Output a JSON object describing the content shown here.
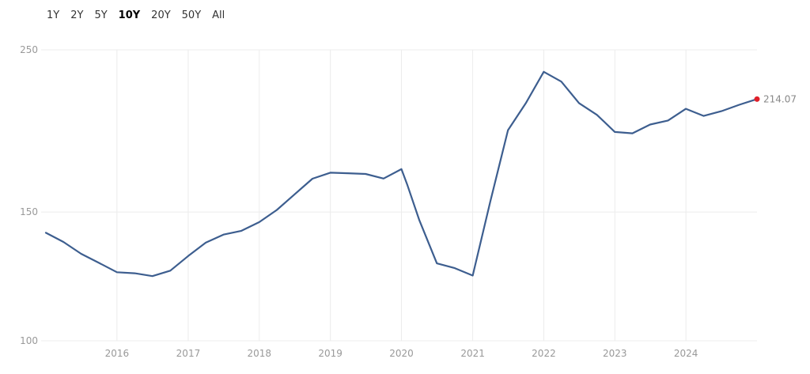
{
  "range_tabs": [
    {
      "label": "1Y",
      "active": false
    },
    {
      "label": "2Y",
      "active": false
    },
    {
      "label": "5Y",
      "active": false
    },
    {
      "label": "10Y",
      "active": true
    },
    {
      "label": "20Y",
      "active": false
    },
    {
      "label": "50Y",
      "active": false
    },
    {
      "label": "All",
      "active": false
    }
  ],
  "colors": {
    "line": "#3d5e8f",
    "last_point": "#e0202a",
    "grid": "#ececec"
  },
  "chart_data": {
    "type": "line",
    "title": "",
    "xlabel": "",
    "ylabel": "",
    "ylim": [
      100,
      250
    ],
    "y_scale": "log",
    "y_ticks": [
      100,
      150,
      250
    ],
    "x_ticks": [
      "2016",
      "2017",
      "2018",
      "2019",
      "2020",
      "2021",
      "2022",
      "2023",
      "2024"
    ],
    "grid": true,
    "last_value_label": "214.07",
    "series": [
      {
        "values": [
          [
            "2015-01-01",
            140.5
          ],
          [
            "2015-04-01",
            136.5
          ],
          [
            "2015-07-01",
            131.5
          ],
          [
            "2015-10-01",
            127.8
          ],
          [
            "2016-01-01",
            124.1
          ],
          [
            "2016-04-01",
            123.7
          ],
          [
            "2016-07-01",
            122.6
          ],
          [
            "2016-10-01",
            124.7
          ],
          [
            "2017-01-01",
            130.6
          ],
          [
            "2017-04-01",
            136.2
          ],
          [
            "2017-07-01",
            139.7
          ],
          [
            "2017-10-01",
            141.4
          ],
          [
            "2018-01-01",
            145.3
          ],
          [
            "2018-04-01",
            151.0
          ],
          [
            "2018-07-01",
            158.6
          ],
          [
            "2018-10-01",
            166.6
          ],
          [
            "2019-01-01",
            169.8
          ],
          [
            "2019-04-01",
            169.5
          ],
          [
            "2019-07-01",
            169.1
          ],
          [
            "2019-10-01",
            166.7
          ],
          [
            "2020-01-01",
            171.7
          ],
          [
            "2020-02-01",
            163.2
          ],
          [
            "2020-04-01",
            146.4
          ],
          [
            "2020-07-01",
            127.6
          ],
          [
            "2020-10-01",
            125.7
          ],
          [
            "2021-01-01",
            122.8
          ],
          [
            "2021-04-01",
            155.0
          ],
          [
            "2021-07-01",
            194.1
          ],
          [
            "2021-10-01",
            211.4
          ],
          [
            "2022-01-01",
            233.3
          ],
          [
            "2022-04-01",
            226.2
          ],
          [
            "2022-07-01",
            211.4
          ],
          [
            "2022-10-01",
            203.7
          ],
          [
            "2023-01-01",
            193.0
          ],
          [
            "2023-04-01",
            192.2
          ],
          [
            "2023-07-01",
            197.6
          ],
          [
            "2023-10-01",
            200.1
          ],
          [
            "2024-01-01",
            207.6
          ],
          [
            "2024-04-01",
            203.0
          ],
          [
            "2024-07-01",
            206.1
          ],
          [
            "2024-10-01",
            210.3
          ],
          [
            "2024-12-31",
            214.07
          ]
        ]
      }
    ]
  }
}
